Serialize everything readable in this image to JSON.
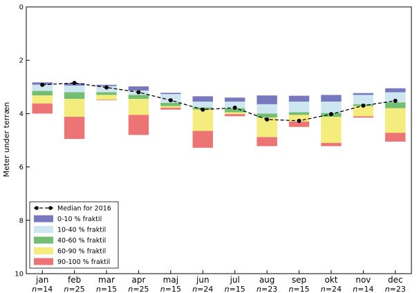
{
  "chart_data": {
    "type": "bar",
    "ylabel": "Meter under terræn",
    "ylim": [
      10,
      0
    ],
    "yticks": [
      0,
      2,
      4,
      6,
      8,
      10
    ],
    "y_inverted": true,
    "grid": false,
    "legend_placement": "lower-left",
    "categories": [
      "jan",
      "feb",
      "mar",
      "apr",
      "maj",
      "jun",
      "jul",
      "aug",
      "sep",
      "okt",
      "nov",
      "dec"
    ],
    "n_prefix": "n=",
    "n_values": [
      14,
      25,
      15,
      25,
      15,
      24,
      15,
      23,
      15,
      24,
      14,
      23
    ],
    "median_series": {
      "name": "Median for 2016",
      "color": "#000000",
      "values": [
        2.92,
        2.85,
        3.02,
        3.2,
        3.5,
        3.85,
        3.78,
        4.22,
        4.27,
        4.02,
        3.7,
        3.52
      ]
    },
    "percentile_bands": [
      {
        "name": "0-10 % fraktil",
        "color": "#7878bf",
        "from": [
          2.83,
          2.86,
          2.92,
          2.98,
          3.22,
          3.35,
          3.4,
          3.32,
          3.33,
          3.3,
          3.23,
          3.05
        ],
        "to": [
          2.92,
          2.95,
          2.97,
          3.14,
          3.27,
          3.55,
          3.55,
          3.65,
          3.55,
          3.55,
          3.3,
          3.2
        ]
      },
      {
        "name": "10-40 % fraktil",
        "color": "#cde6ef",
        "from": [
          2.92,
          2.95,
          2.97,
          3.14,
          3.27,
          3.55,
          3.55,
          3.65,
          3.55,
          3.55,
          3.3,
          3.2
        ],
        "to": [
          3.15,
          3.2,
          3.2,
          3.3,
          3.6,
          3.77,
          3.8,
          4.0,
          3.95,
          3.98,
          3.65,
          3.58
        ]
      },
      {
        "name": "40-60 % fraktil",
        "color": "#74be74",
        "from": [
          3.15,
          3.2,
          3.2,
          3.3,
          3.6,
          3.77,
          3.8,
          4.0,
          3.95,
          3.98,
          3.65,
          3.58
        ],
        "to": [
          3.32,
          3.45,
          3.3,
          3.45,
          3.72,
          3.85,
          3.95,
          4.15,
          4.05,
          4.12,
          3.72,
          3.8
        ]
      },
      {
        "name": "60-90 % fraktil",
        "color": "#f4ec7c",
        "from": [
          3.32,
          3.45,
          3.3,
          3.45,
          3.72,
          3.85,
          3.95,
          4.15,
          4.05,
          4.12,
          3.72,
          3.8
        ],
        "to": [
          3.62,
          4.12,
          3.48,
          4.05,
          3.78,
          4.65,
          4.02,
          4.88,
          4.3,
          5.1,
          4.1,
          4.72
        ]
      },
      {
        "name": "90-100 % fraktil",
        "color": "#ec7474",
        "from": [
          3.62,
          4.12,
          3.48,
          4.05,
          3.78,
          4.65,
          4.02,
          4.88,
          4.3,
          5.1,
          4.1,
          4.72
        ],
        "to": [
          4.0,
          4.95,
          3.5,
          4.8,
          3.85,
          5.28,
          4.1,
          5.22,
          4.5,
          5.22,
          4.15,
          5.05
        ]
      }
    ]
  }
}
